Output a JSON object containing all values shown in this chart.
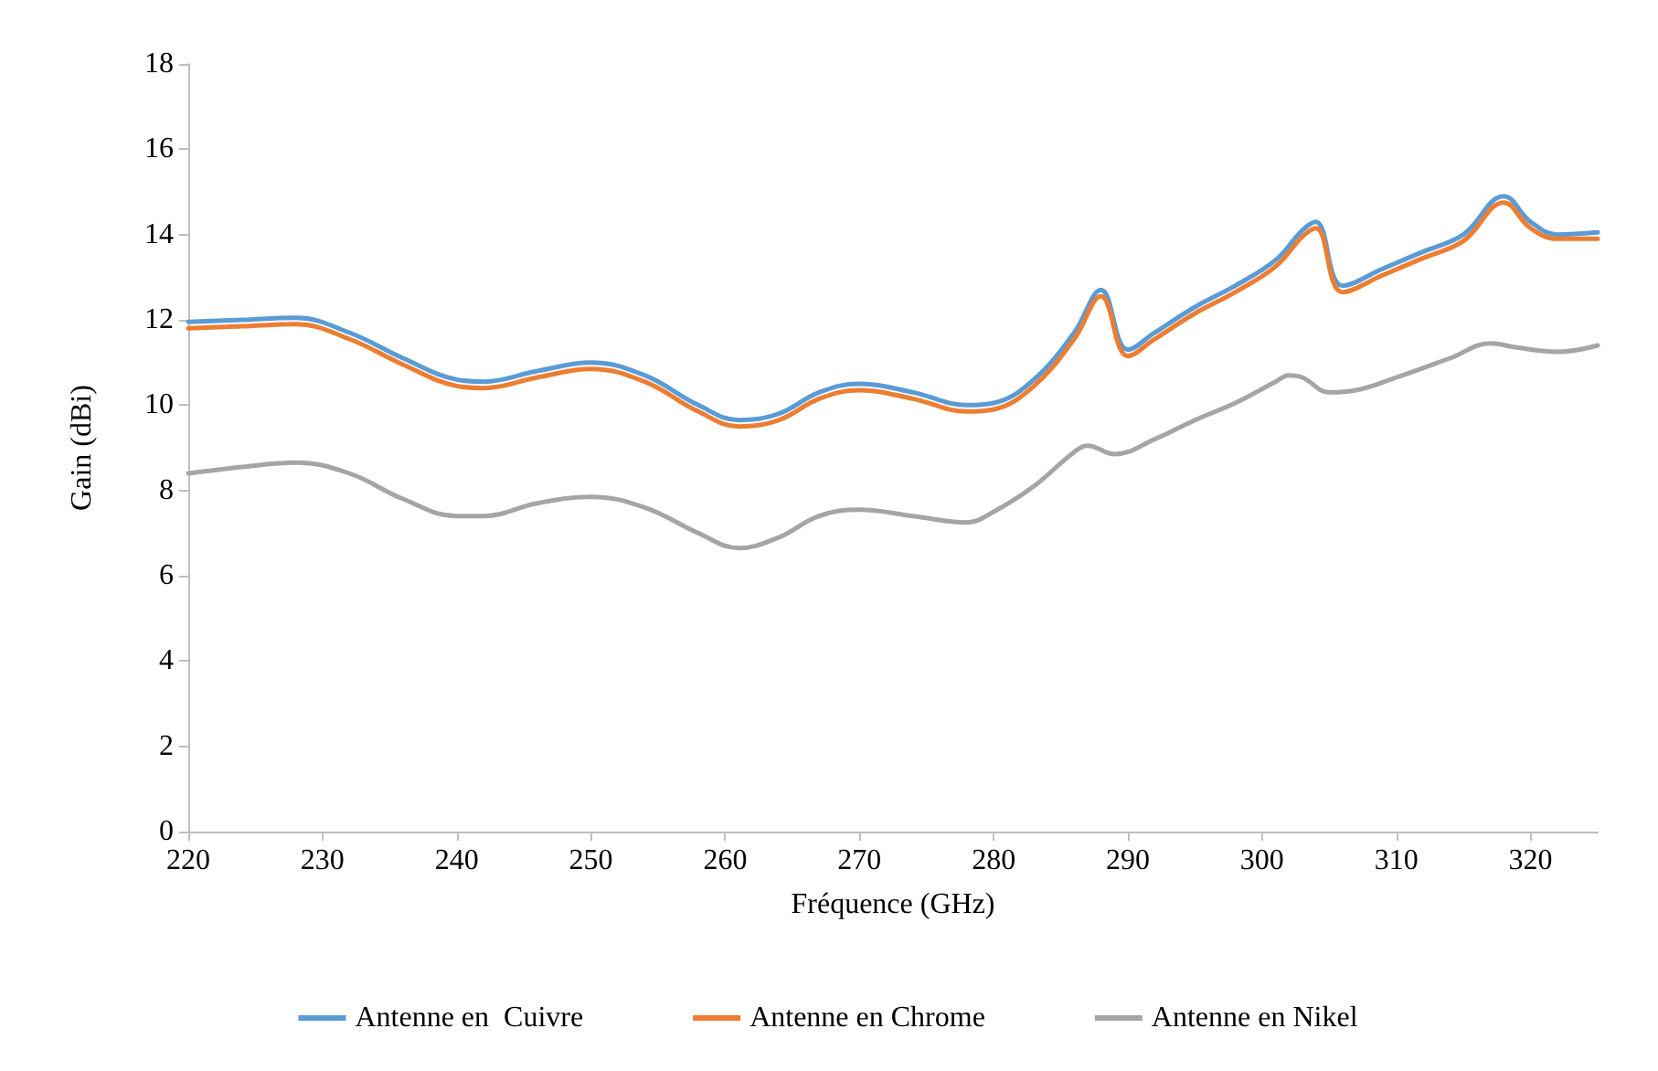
{
  "chart_data": {
    "type": "line",
    "xlabel": "Fréquence (GHz)",
    "ylabel": "Gain (dBi)",
    "xlim": [
      220,
      325
    ],
    "xticks": [
      220,
      230,
      240,
      250,
      260,
      270,
      280,
      290,
      300,
      310,
      320
    ],
    "ylim": [
      0,
      18
    ],
    "yticks": [
      0,
      2,
      4,
      6,
      8,
      10,
      12,
      14,
      16,
      18
    ],
    "grid": false,
    "legend": "bottom",
    "marker": "none",
    "line_style": "solid",
    "series": [
      {
        "name": "Antenne en  Cuivre",
        "color": "#5b9bd5",
        "x": [
          220,
          224,
          228,
          232,
          236,
          240,
          242,
          246,
          250,
          254,
          258,
          261,
          264,
          267,
          270,
          274,
          278,
          280,
          283,
          286,
          288,
          290,
          292,
          295,
          298,
          301,
          303,
          304,
          306,
          309,
          312,
          315,
          318,
          320,
          322,
          325
        ],
        "values": [
          11.95,
          12.0,
          12.05,
          11.7,
          11.1,
          10.6,
          10.55,
          10.8,
          11.0,
          10.7,
          10.0,
          9.65,
          9.8,
          10.3,
          10.5,
          10.3,
          10.0,
          10.05,
          10.6,
          11.7,
          12.7,
          11.3,
          11.7,
          12.3,
          12.8,
          13.4,
          14.1,
          14.3,
          12.8,
          13.2,
          13.6,
          14.0,
          14.9,
          14.3,
          14.0,
          14.05
        ]
      },
      {
        "name": "Antenne en Chrome",
        "color": "#ed7d31",
        "x": [
          220,
          224,
          228,
          232,
          236,
          240,
          242,
          246,
          250,
          254,
          258,
          261,
          264,
          267,
          270,
          274,
          278,
          280,
          283,
          286,
          288,
          290,
          292,
          295,
          298,
          301,
          303,
          304,
          306,
          309,
          312,
          315,
          318,
          320,
          322,
          325
        ],
        "values": [
          11.8,
          11.85,
          11.9,
          11.55,
          10.95,
          10.45,
          10.4,
          10.65,
          10.85,
          10.55,
          9.85,
          9.5,
          9.65,
          10.15,
          10.35,
          10.15,
          9.85,
          9.9,
          10.45,
          11.55,
          12.55,
          11.15,
          11.55,
          12.15,
          12.65,
          13.25,
          13.95,
          14.15,
          12.65,
          13.05,
          13.45,
          13.85,
          14.75,
          14.15,
          13.9,
          13.9
        ]
      },
      {
        "name": "Antenne en Nikel",
        "color": "#a5a5a5",
        "x": [
          220,
          224,
          228,
          232,
          236,
          240,
          242,
          246,
          250,
          254,
          258,
          261,
          264,
          267,
          270,
          274,
          278,
          280,
          283,
          286,
          287,
          289,
          292,
          295,
          298,
          301,
          302,
          303,
          305,
          307,
          310,
          314,
          317,
          319,
          322,
          325
        ],
        "values": [
          8.4,
          8.55,
          8.65,
          8.4,
          7.8,
          7.4,
          7.4,
          7.7,
          7.85,
          7.6,
          7.0,
          6.65,
          6.9,
          7.4,
          7.55,
          7.4,
          7.25,
          7.5,
          8.1,
          8.9,
          9.05,
          8.85,
          9.2,
          9.65,
          10.05,
          10.55,
          10.7,
          10.65,
          10.3,
          10.35,
          10.65,
          11.1,
          11.45,
          11.35,
          11.25,
          11.4
        ]
      }
    ]
  }
}
